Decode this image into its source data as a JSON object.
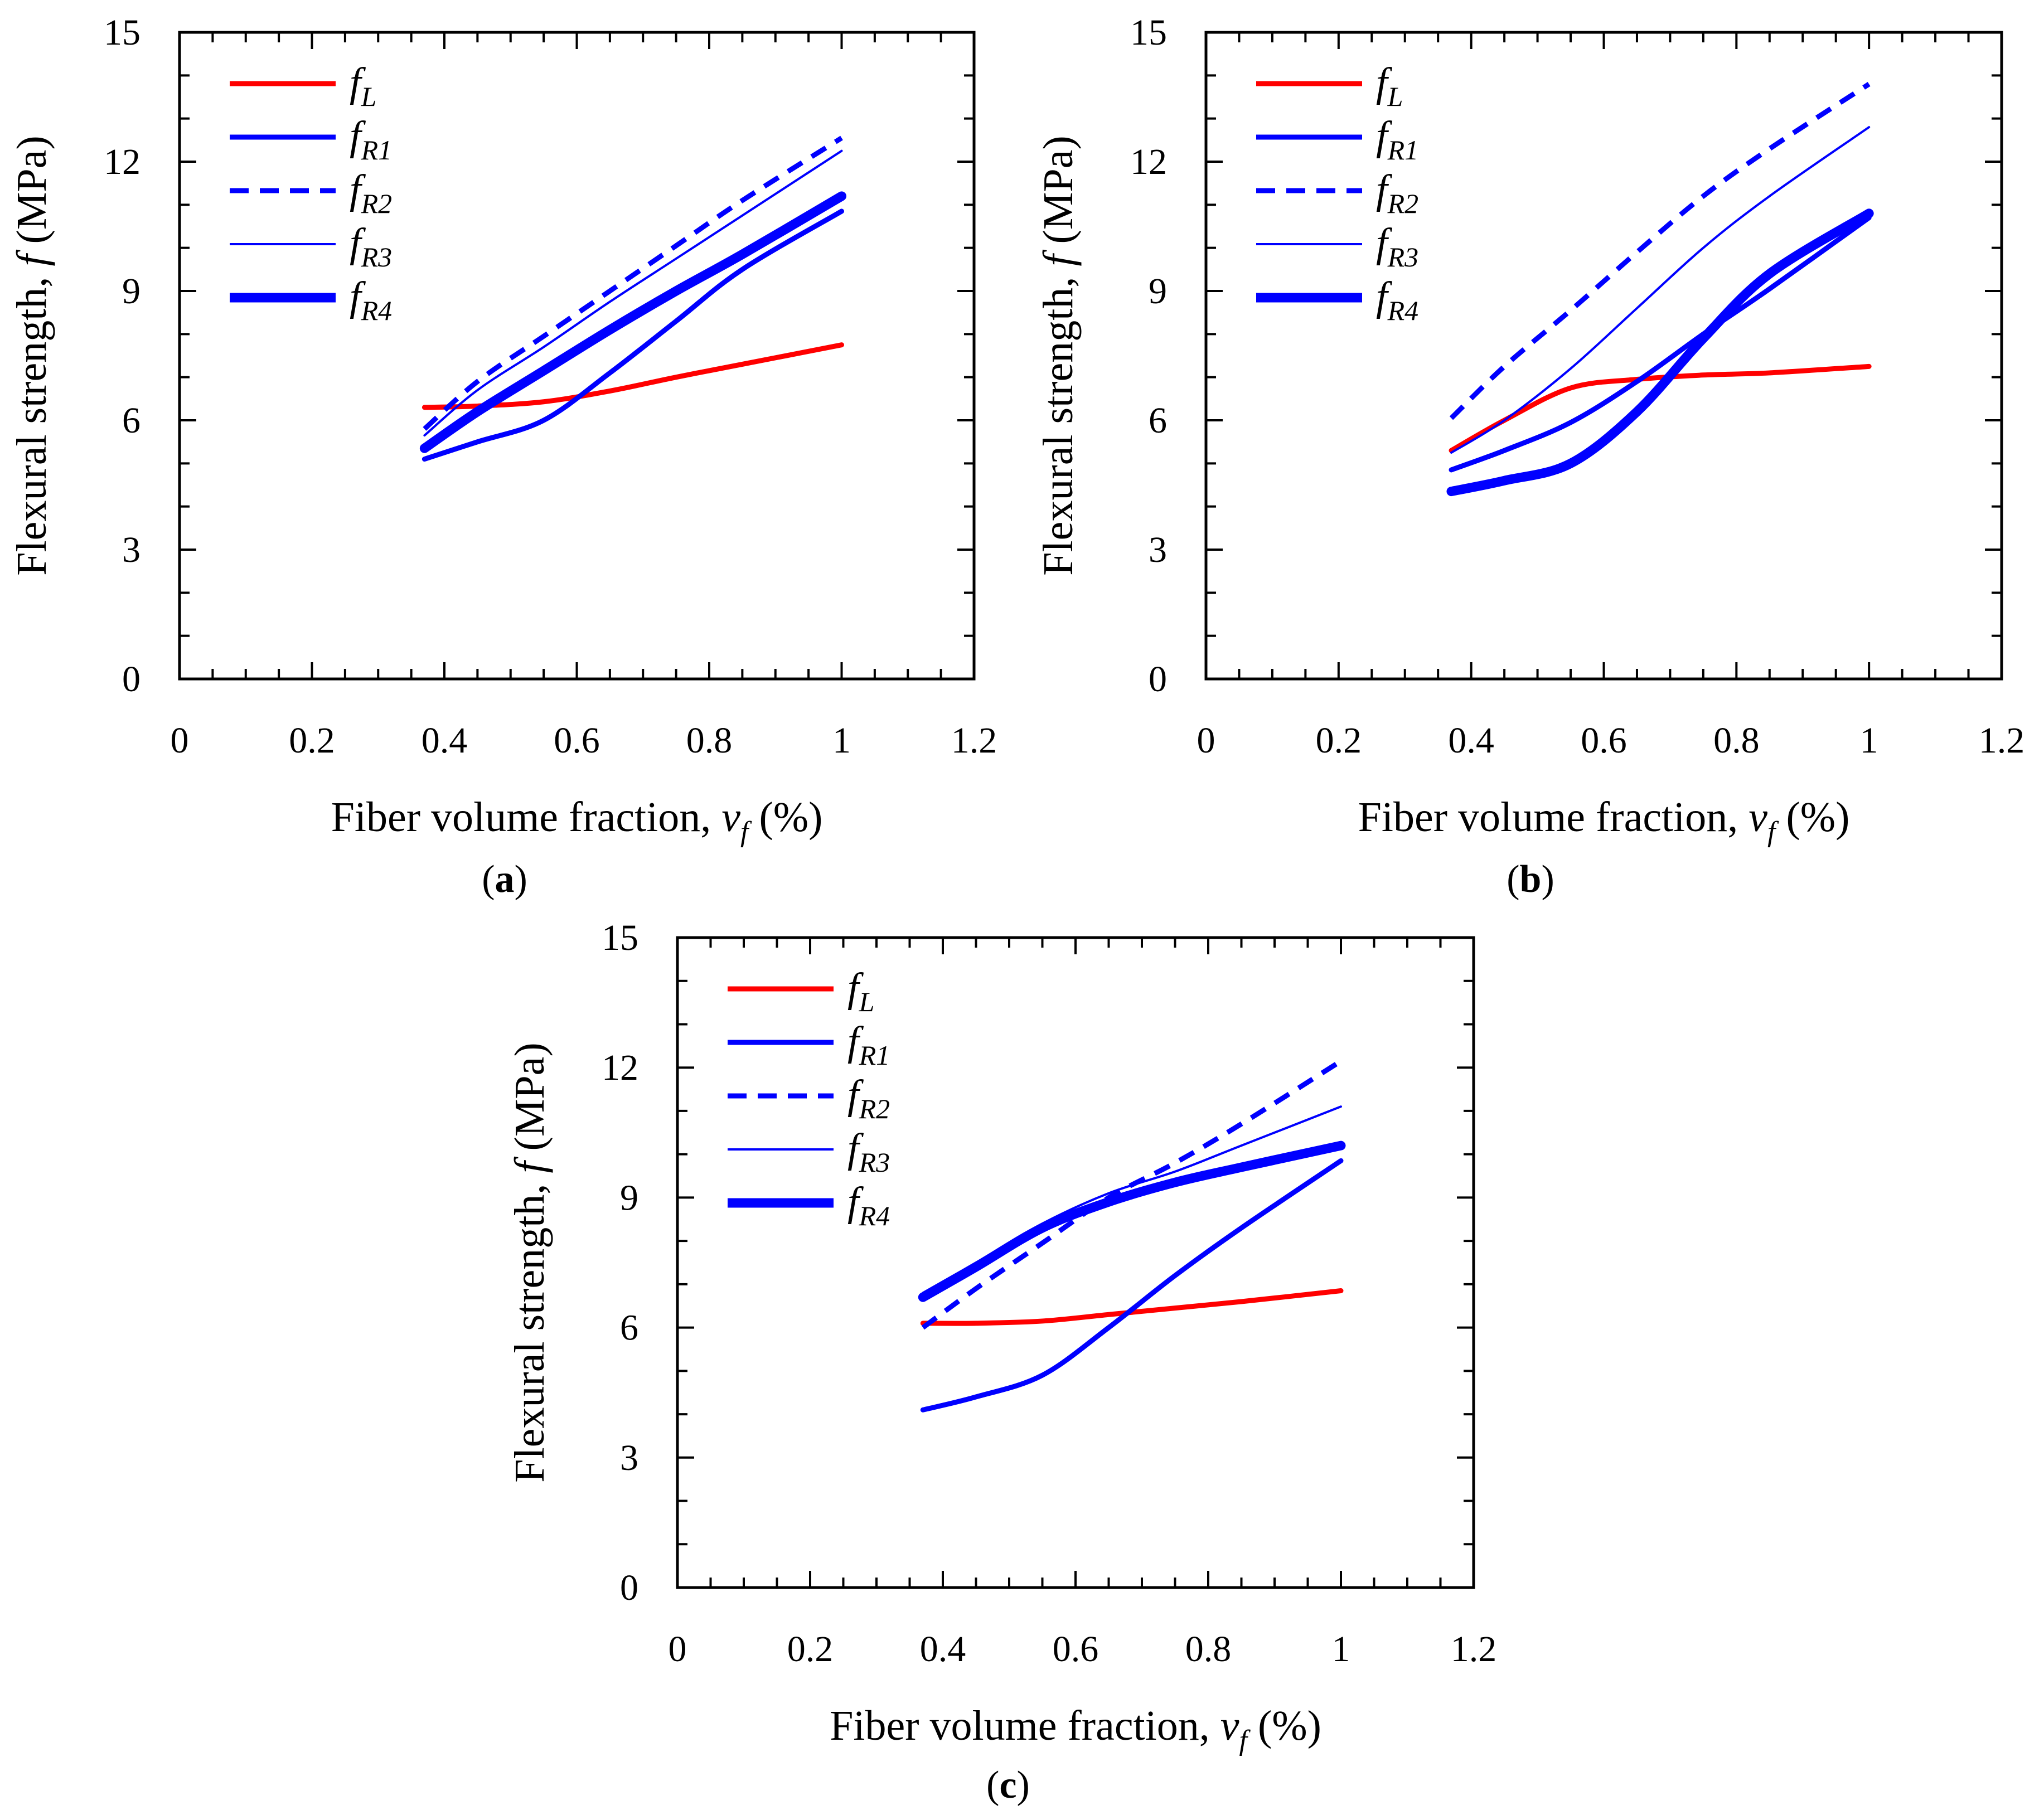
{
  "figure": {
    "background": "#ffffff"
  },
  "chart_data": [
    {
      "type": "line",
      "panel_label": "a",
      "caption_open": "(",
      "caption_close": ")",
      "xlabel": "Fiber volume fraction,",
      "xlabel_var": "v",
      "xlabel_sub": "f",
      "xlabel_unit": "(%)",
      "ylabel": "Flexural strength,",
      "ylabel_var": "f",
      "ylabel_unit": "(MPa)",
      "xlim": [
        0,
        1.2
      ],
      "ylim": [
        0,
        15
      ],
      "xticks": [
        "0",
        "0.2",
        "0.4",
        "0.6",
        "0.8",
        "1",
        "1.2"
      ],
      "yticks": [
        "0",
        "3",
        "6",
        "9",
        "12",
        "15"
      ],
      "grid": false,
      "legend_position": "top-left",
      "x": [
        0.37,
        0.45,
        0.55,
        0.65,
        0.75,
        0.85,
        1.0
      ],
      "series": [
        {
          "name": "f",
          "sub": "L",
          "color": "#ff0000",
          "style": "solid",
          "weight": "medium",
          "values": [
            6.3,
            6.33,
            6.43,
            6.68,
            7.0,
            7.3,
            7.75
          ]
        },
        {
          "name": "f",
          "sub": "R1",
          "color": "#0000ff",
          "style": "solid",
          "weight": "medium",
          "values": [
            5.1,
            5.5,
            6.0,
            7.1,
            8.3,
            9.5,
            10.85
          ]
        },
        {
          "name": "f",
          "sub": "R2",
          "color": "#0000ff",
          "style": "dashed",
          "weight": "medium",
          "values": [
            5.8,
            6.9,
            7.95,
            9.0,
            10.05,
            11.1,
            12.55
          ]
        },
        {
          "name": "f",
          "sub": "R3",
          "color": "#0000ff",
          "style": "solid",
          "weight": "thin",
          "values": [
            5.65,
            6.7,
            7.7,
            8.75,
            9.75,
            10.75,
            12.25
          ]
        },
        {
          "name": "f",
          "sub": "R4",
          "color": "#0000ff",
          "style": "solid",
          "weight": "thick",
          "values": [
            5.35,
            6.2,
            7.15,
            8.1,
            9.0,
            9.85,
            11.2
          ]
        }
      ]
    },
    {
      "type": "line",
      "panel_label": "b",
      "caption_open": "(",
      "caption_close": ")",
      "xlabel": "Fiber volume fraction,",
      "xlabel_var": "v",
      "xlabel_sub": "f",
      "xlabel_unit": "(%)",
      "ylabel": "Flexural strength,",
      "ylabel_var": "f",
      "ylabel_unit": "(MPa)",
      "xlim": [
        0,
        1.2
      ],
      "ylim": [
        0,
        15
      ],
      "xticks": [
        "0",
        "0.2",
        "0.4",
        "0.6",
        "0.8",
        "1",
        "1.2"
      ],
      "yticks": [
        "0",
        "3",
        "6",
        "9",
        "12",
        "15"
      ],
      "grid": false,
      "legend_position": "top-left",
      "x": [
        0.37,
        0.45,
        0.55,
        0.65,
        0.75,
        0.85,
        1.0
      ],
      "series": [
        {
          "name": "f",
          "sub": "L",
          "color": "#ff0000",
          "style": "solid",
          "weight": "medium",
          "values": [
            5.3,
            6.0,
            6.75,
            6.95,
            7.05,
            7.1,
            7.25
          ]
        },
        {
          "name": "f",
          "sub": "R1",
          "color": "#0000ff",
          "style": "solid",
          "weight": "medium",
          "values": [
            4.85,
            5.3,
            5.95,
            6.9,
            8.0,
            9.05,
            10.7
          ]
        },
        {
          "name": "f",
          "sub": "R2",
          "color": "#0000ff",
          "style": "dashed",
          "weight": "medium",
          "values": [
            6.05,
            7.25,
            8.55,
            9.9,
            11.2,
            12.3,
            13.8
          ]
        },
        {
          "name": "f",
          "sub": "R3",
          "color": "#0000ff",
          "style": "solid",
          "weight": "thin",
          "values": [
            5.25,
            6.0,
            7.2,
            8.6,
            10.0,
            11.2,
            12.8
          ]
        },
        {
          "name": "f",
          "sub": "R4",
          "color": "#0000ff",
          "style": "solid",
          "weight": "thick",
          "values": [
            4.35,
            4.6,
            5.0,
            6.2,
            7.9,
            9.4,
            10.8
          ]
        }
      ]
    },
    {
      "type": "line",
      "panel_label": "c",
      "caption_open": "(",
      "caption_close": ")",
      "xlabel": "Fiber volume fraction,",
      "xlabel_var": "v",
      "xlabel_sub": "f",
      "xlabel_unit": "(%)",
      "ylabel": "Flexural strength,",
      "ylabel_var": "f",
      "ylabel_unit": "(MPa)",
      "xlim": [
        0,
        1.2
      ],
      "ylim": [
        0,
        15
      ],
      "xticks": [
        "0",
        "0.2",
        "0.4",
        "0.6",
        "0.8",
        "1",
        "1.2"
      ],
      "yticks": [
        "0",
        "3",
        "6",
        "9",
        "12",
        "15"
      ],
      "grid": false,
      "legend_position": "top-left",
      "x": [
        0.37,
        0.45,
        0.55,
        0.65,
        0.75,
        0.85,
        1.0
      ],
      "series": [
        {
          "name": "f",
          "sub": "L",
          "color": "#ff0000",
          "style": "solid",
          "weight": "medium",
          "values": [
            6.1,
            6.1,
            6.15,
            6.3,
            6.45,
            6.6,
            6.85
          ]
        },
        {
          "name": "f",
          "sub": "R1",
          "color": "#0000ff",
          "style": "solid",
          "weight": "medium",
          "values": [
            4.1,
            4.4,
            4.9,
            6.0,
            7.2,
            8.3,
            9.85
          ]
        },
        {
          "name": "f",
          "sub": "R2",
          "color": "#0000ff",
          "style": "dashed",
          "weight": "medium",
          "values": [
            6.0,
            6.9,
            7.95,
            9.0,
            9.8,
            10.7,
            12.15
          ]
        },
        {
          "name": "f",
          "sub": "R3",
          "color": "#0000ff",
          "style": "solid",
          "weight": "thin",
          "values": [
            6.8,
            7.5,
            8.4,
            9.1,
            9.6,
            10.2,
            11.1
          ]
        },
        {
          "name": "f",
          "sub": "R4",
          "color": "#0000ff",
          "style": "solid",
          "weight": "thick",
          "values": [
            6.7,
            7.4,
            8.3,
            8.9,
            9.35,
            9.7,
            10.2
          ]
        }
      ]
    }
  ]
}
